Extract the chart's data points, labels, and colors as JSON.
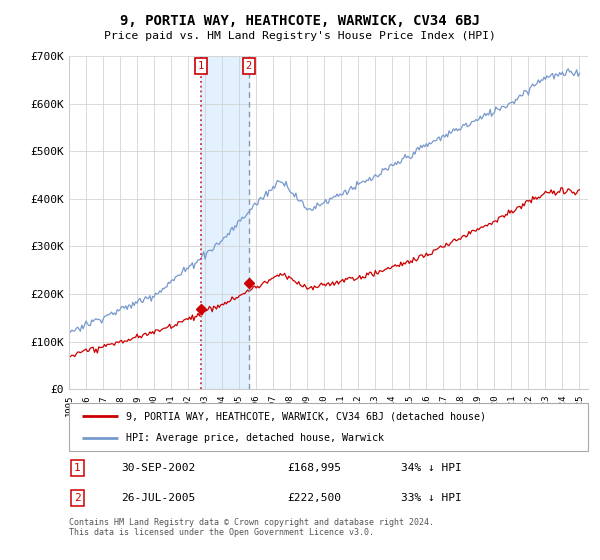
{
  "title": "9, PORTIA WAY, HEATHCOTE, WARWICK, CV34 6BJ",
  "subtitle": "Price paid vs. HM Land Registry's House Price Index (HPI)",
  "ylim": [
    0,
    700000
  ],
  "yticks": [
    0,
    100000,
    200000,
    300000,
    400000,
    500000,
    600000,
    700000
  ],
  "ytick_labels": [
    "£0",
    "£100K",
    "£200K",
    "£300K",
    "£400K",
    "£500K",
    "£600K",
    "£700K"
  ],
  "hpi_color": "#7799cc",
  "price_color": "#cc0000",
  "transaction1_date": 2002.75,
  "transaction1_price": 168995,
  "transaction2_date": 2005.57,
  "transaction2_price": 222500,
  "legend_line1": "9, PORTIA WAY, HEATHCOTE, WARWICK, CV34 6BJ (detached house)",
  "legend_line2": "HPI: Average price, detached house, Warwick",
  "table_row1_num": "1",
  "table_row1_date": "30-SEP-2002",
  "table_row1_price": "£168,995",
  "table_row1_hpi": "34% ↓ HPI",
  "table_row2_num": "2",
  "table_row2_date": "26-JUL-2005",
  "table_row2_price": "£222,500",
  "table_row2_hpi": "33% ↓ HPI",
  "footnote": "Contains HM Land Registry data © Crown copyright and database right 2024.\nThis data is licensed under the Open Government Licence v3.0.",
  "bg_color": "#ffffff",
  "grid_color": "#cccccc",
  "shade_color": "#ddeeff",
  "vline1_color": "#cc3333",
  "vline2_color": "#8899aa"
}
